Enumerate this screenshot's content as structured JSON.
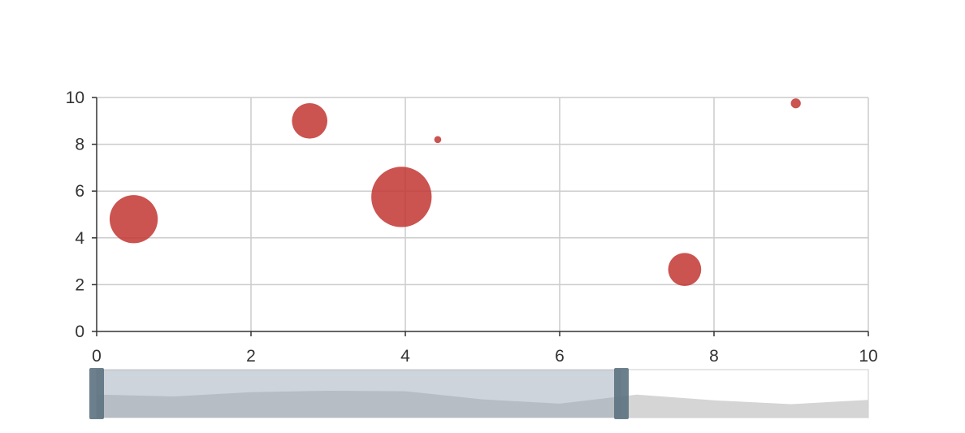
{
  "chart_data": {
    "type": "scatter",
    "title": "",
    "xlabel": "",
    "ylabel": "",
    "xlim": [
      0,
      10
    ],
    "ylim": [
      0,
      10
    ],
    "x_ticks": [
      "0",
      "2",
      "4",
      "6",
      "8",
      "10"
    ],
    "y_ticks": [
      "0",
      "2",
      "4",
      "6",
      "8",
      "10"
    ],
    "grid": true,
    "marker_shape": "bubble",
    "series": [
      {
        "color": "#c23531",
        "points": [
          {
            "x": 0.48,
            "y": 4.8,
            "size": 7.0
          },
          {
            "x": 2.76,
            "y": 9.0,
            "size": 3.8
          },
          {
            "x": 3.95,
            "y": 5.75,
            "size": 11.0
          },
          {
            "x": 4.42,
            "y": 8.2,
            "size": 0.15
          },
          {
            "x": 7.62,
            "y": 2.65,
            "size": 3.3
          },
          {
            "x": 9.06,
            "y": 9.75,
            "size": 0.3
          }
        ]
      }
    ],
    "datazoom": {
      "orientation": "horizontal",
      "start_fraction": 0.0,
      "end_fraction": 0.68,
      "preview_values": [
        4.8,
        4.4,
        5.3,
        5.6,
        5.5,
        3.8,
        2.9,
        4.8,
        3.6,
        2.8,
        3.7
      ]
    }
  },
  "colors": {
    "bubble": "#c23531",
    "grid": "#cccccc",
    "axis": "#333333",
    "zoom_frame": "#dddddd",
    "zoom_preview": "#d0d0d0",
    "zoom_selected": "#90a0b0",
    "zoom_handle": "#5c7180"
  }
}
